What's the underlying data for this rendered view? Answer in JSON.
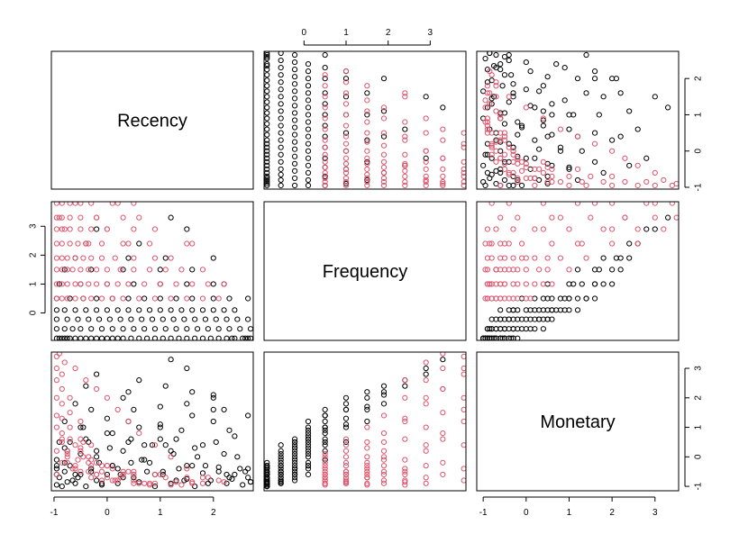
{
  "chart_data": {
    "type": "scatter-matrix",
    "variables": [
      "Recency",
      "Frequency",
      "Monetary"
    ],
    "ranges": {
      "Recency": [
        -1.05,
        2.75
      ],
      "Frequency": [
        -0.95,
        3.85
      ],
      "Monetary": [
        -1.15,
        3.55
      ]
    },
    "ticks": {
      "Recency": [
        -1,
        0,
        1,
        2
      ],
      "Frequency": [
        0,
        1,
        2,
        3
      ],
      "Monetary": [
        -1,
        0,
        1,
        2,
        3
      ]
    },
    "frequency_levels": [
      -0.88,
      -0.55,
      -0.22,
      0.1,
      0.5,
      1.0,
      1.5,
      1.9,
      2.4,
      2.9,
      3.3,
      3.8
    ],
    "groups": [
      {
        "id": 1,
        "color": "#000000"
      },
      {
        "id": 2,
        "color": "#DF536B"
      }
    ],
    "points": [
      [
        -0.95,
        -0.88,
        -0.95,
        1
      ],
      [
        -0.9,
        -0.88,
        -0.7,
        1
      ],
      [
        -0.85,
        -0.88,
        -1.0,
        1
      ],
      [
        -0.8,
        -0.88,
        -0.5,
        1
      ],
      [
        -0.75,
        -0.88,
        -0.85,
        1
      ],
      [
        -0.7,
        -0.88,
        -0.3,
        1
      ],
      [
        -0.6,
        -0.88,
        -0.9,
        1
      ],
      [
        -0.5,
        -0.88,
        -0.6,
        1
      ],
      [
        -0.4,
        -0.88,
        -1.0,
        1
      ],
      [
        -0.3,
        -0.88,
        -0.4,
        1
      ],
      [
        -0.2,
        -0.88,
        -0.8,
        1
      ],
      [
        -0.1,
        -0.88,
        -0.95,
        1
      ],
      [
        0.0,
        -0.88,
        -0.6,
        1
      ],
      [
        0.1,
        -0.88,
        -0.3,
        1
      ],
      [
        0.2,
        -0.88,
        -0.9,
        1
      ],
      [
        0.3,
        -0.88,
        -0.7,
        1
      ],
      [
        0.45,
        -0.88,
        -0.2,
        1
      ],
      [
        0.6,
        -0.88,
        -0.85,
        1
      ],
      [
        0.75,
        -0.88,
        -0.5,
        1
      ],
      [
        0.9,
        -0.88,
        -1.0,
        1
      ],
      [
        1.05,
        -0.88,
        -0.6,
        1
      ],
      [
        1.2,
        -0.88,
        -0.9,
        1
      ],
      [
        1.35,
        -0.88,
        -0.4,
        1
      ],
      [
        1.5,
        -0.88,
        -0.75,
        1
      ],
      [
        1.65,
        -0.88,
        -1.0,
        1
      ],
      [
        1.8,
        -0.88,
        -0.55,
        1
      ],
      [
        1.95,
        -0.88,
        -0.8,
        1
      ],
      [
        2.1,
        -0.88,
        -0.35,
        1
      ],
      [
        2.25,
        -0.88,
        -0.9,
        1
      ],
      [
        2.4,
        -0.88,
        -0.6,
        1
      ],
      [
        2.55,
        -0.88,
        -0.95,
        1
      ],
      [
        2.65,
        -0.88,
        -0.7,
        1
      ],
      [
        2.7,
        -0.88,
        -0.85,
        1
      ],
      [
        2.6,
        -0.88,
        -0.5,
        1
      ],
      [
        2.35,
        -0.88,
        -0.75,
        1
      ],
      [
        -0.95,
        -0.55,
        -0.6,
        1
      ],
      [
        -0.8,
        -0.55,
        -0.2,
        1
      ],
      [
        -0.65,
        -0.55,
        -0.8,
        1
      ],
      [
        -0.5,
        -0.55,
        0.1,
        1
      ],
      [
        -0.3,
        -0.55,
        -0.5,
        1
      ],
      [
        -0.1,
        -0.55,
        -0.9,
        1
      ],
      [
        0.1,
        -0.55,
        -0.3,
        1
      ],
      [
        0.3,
        -0.55,
        0.2,
        1
      ],
      [
        0.5,
        -0.55,
        -0.7,
        1
      ],
      [
        0.7,
        -0.55,
        -0.1,
        1
      ],
      [
        0.9,
        -0.55,
        -0.6,
        1
      ],
      [
        1.1,
        -0.55,
        0.4,
        1
      ],
      [
        1.3,
        -0.55,
        -0.8,
        1
      ],
      [
        1.5,
        -0.55,
        -0.3,
        1
      ],
      [
        1.7,
        -0.55,
        0.0,
        1
      ],
      [
        1.9,
        -0.55,
        -0.9,
        1
      ],
      [
        2.1,
        -0.55,
        -0.5,
        1
      ],
      [
        2.3,
        -0.55,
        -0.7,
        1
      ],
      [
        2.5,
        -0.55,
        -0.4,
        1
      ],
      [
        2.7,
        -0.55,
        -0.85,
        1
      ],
      [
        -0.95,
        -0.22,
        -0.4,
        1
      ],
      [
        -0.75,
        -0.22,
        0.2,
        1
      ],
      [
        -0.55,
        -0.22,
        -0.7,
        1
      ],
      [
        -0.35,
        -0.22,
        0.5,
        1
      ],
      [
        -0.15,
        -0.22,
        -0.2,
        1
      ],
      [
        0.05,
        -0.22,
        0.3,
        1
      ],
      [
        0.25,
        -0.22,
        -0.6,
        1
      ],
      [
        0.45,
        -0.22,
        0.6,
        1
      ],
      [
        0.65,
        -0.22,
        -0.1,
        1
      ],
      [
        0.85,
        -0.22,
        0.4,
        1
      ],
      [
        1.05,
        -0.22,
        -0.5,
        1
      ],
      [
        1.25,
        -0.22,
        0.1,
        1
      ],
      [
        1.45,
        -0.22,
        -0.8,
        1
      ],
      [
        1.65,
        -0.22,
        0.3,
        1
      ],
      [
        1.85,
        -0.22,
        -0.3,
        1
      ],
      [
        2.05,
        -0.22,
        0.5,
        1
      ],
      [
        2.25,
        -0.22,
        -0.6,
        1
      ],
      [
        2.45,
        -0.22,
        0.0,
        1
      ],
      [
        2.65,
        -0.22,
        -0.4,
        1
      ],
      [
        -0.95,
        0.1,
        -0.3,
        1
      ],
      [
        -0.8,
        0.1,
        0.3,
        1
      ],
      [
        -0.6,
        0.1,
        -0.6,
        1
      ],
      [
        -0.4,
        0.1,
        0.6,
        1
      ],
      [
        -0.2,
        0.1,
        0.0,
        1
      ],
      [
        0.0,
        0.1,
        0.8,
        1
      ],
      [
        0.2,
        0.1,
        -0.4,
        1
      ],
      [
        0.4,
        0.1,
        0.5,
        1
      ],
      [
        0.6,
        0.1,
        1.0,
        1
      ],
      [
        0.8,
        0.1,
        -0.2,
        1
      ],
      [
        1.0,
        0.1,
        0.6,
        1
      ],
      [
        1.2,
        0.1,
        0.2,
        1
      ],
      [
        1.4,
        0.1,
        0.9,
        1
      ],
      [
        1.6,
        0.1,
        -0.3,
        1
      ],
      [
        1.8,
        0.1,
        0.4,
        1
      ],
      [
        2.0,
        0.1,
        1.2,
        1
      ],
      [
        2.2,
        0.1,
        0.1,
        1
      ],
      [
        2.4,
        0.1,
        0.7,
        1
      ],
      [
        -0.95,
        0.5,
        -0.1,
        1
      ],
      [
        -0.7,
        0.5,
        0.5,
        1
      ],
      [
        -0.45,
        0.5,
        1.0,
        1
      ],
      [
        -0.2,
        0.5,
        0.2,
        1
      ],
      [
        0.1,
        0.5,
        0.8,
        1
      ],
      [
        0.4,
        0.5,
        1.2,
        1
      ],
      [
        0.7,
        0.5,
        0.4,
        1
      ],
      [
        1.0,
        0.5,
        1.0,
        1
      ],
      [
        1.3,
        0.5,
        0.6,
        1
      ],
      [
        1.6,
        0.5,
        1.4,
        1
      ],
      [
        2.0,
        0.5,
        1.6,
        1
      ],
      [
        2.3,
        0.5,
        0.9,
        1
      ],
      [
        2.65,
        0.5,
        1.4,
        1
      ],
      [
        -0.9,
        1.0,
        0.5,
        1
      ],
      [
        -0.5,
        1.0,
        1.0,
        1
      ],
      [
        0.0,
        1.0,
        1.3,
        1
      ],
      [
        0.5,
        1.0,
        1.6,
        1
      ],
      [
        1.0,
        1.0,
        1.1,
        1
      ],
      [
        1.5,
        1.0,
        1.8,
        1
      ],
      [
        2.0,
        1.0,
        2.0,
        1
      ],
      [
        2.2,
        1.0,
        1.6,
        1
      ],
      [
        -0.8,
        1.5,
        1.2,
        1
      ],
      [
        -0.3,
        1.5,
        1.6,
        1
      ],
      [
        0.3,
        1.5,
        2.0,
        1
      ],
      [
        1.0,
        1.5,
        1.7,
        1
      ],
      [
        1.6,
        1.5,
        2.2,
        1
      ],
      [
        -0.6,
        1.9,
        1.8,
        1
      ],
      [
        0.4,
        1.9,
        2.2,
        1
      ],
      [
        1.1,
        1.9,
        2.4,
        1
      ],
      [
        2.0,
        1.9,
        2.1,
        1
      ],
      [
        -0.4,
        2.4,
        2.4,
        1
      ],
      [
        0.6,
        2.4,
        2.6,
        1
      ],
      [
        1.5,
        2.9,
        3.0,
        1
      ],
      [
        1.2,
        3.3,
        3.3,
        1
      ],
      [
        -0.2,
        2.9,
        2.8,
        1
      ],
      [
        -0.95,
        0.5,
        -0.6,
        2
      ],
      [
        -0.85,
        0.5,
        -0.2,
        2
      ],
      [
        -0.75,
        0.5,
        0.1,
        2
      ],
      [
        -0.6,
        0.5,
        -0.4,
        2
      ],
      [
        -0.45,
        0.5,
        0.0,
        2
      ],
      [
        -0.3,
        0.5,
        -0.7,
        2
      ],
      [
        -0.1,
        0.5,
        -0.3,
        2
      ],
      [
        0.1,
        0.5,
        -0.8,
        2
      ],
      [
        0.3,
        0.5,
        -0.5,
        2
      ],
      [
        0.6,
        0.5,
        -0.9,
        2
      ],
      [
        0.9,
        0.5,
        -0.6,
        2
      ],
      [
        1.2,
        0.5,
        -0.95,
        2
      ],
      [
        1.5,
        0.5,
        -0.7,
        2
      ],
      [
        1.8,
        0.5,
        -0.9,
        2
      ],
      [
        2.1,
        0.5,
        -0.8,
        2
      ],
      [
        -0.95,
        1.0,
        0.2,
        2
      ],
      [
        -0.85,
        1.0,
        0.6,
        2
      ],
      [
        -0.75,
        1.0,
        -0.2,
        2
      ],
      [
        -0.6,
        1.0,
        0.4,
        2
      ],
      [
        -0.5,
        1.0,
        -0.5,
        2
      ],
      [
        -0.35,
        1.0,
        0.0,
        2
      ],
      [
        -0.2,
        1.0,
        -0.6,
        2
      ],
      [
        0.0,
        1.0,
        -0.3,
        2
      ],
      [
        0.2,
        1.0,
        -0.8,
        2
      ],
      [
        0.4,
        1.0,
        -0.5,
        2
      ],
      [
        0.7,
        1.0,
        -0.9,
        2
      ],
      [
        1.0,
        1.0,
        -0.6,
        2
      ],
      [
        1.3,
        1.0,
        -0.85,
        2
      ],
      [
        1.6,
        1.0,
        -0.9,
        2
      ],
      [
        1.9,
        1.0,
        -0.7,
        2
      ],
      [
        -0.95,
        1.5,
        1.0,
        2
      ],
      [
        -0.85,
        1.5,
        0.5,
        2
      ],
      [
        -0.75,
        1.5,
        0.0,
        2
      ],
      [
        -0.65,
        1.5,
        -0.4,
        2
      ],
      [
        -0.5,
        1.5,
        0.3,
        2
      ],
      [
        -0.35,
        1.5,
        -0.2,
        2
      ],
      [
        -0.2,
        1.5,
        -0.6,
        2
      ],
      [
        0.0,
        1.5,
        -0.3,
        2
      ],
      [
        0.25,
        1.5,
        -0.7,
        2
      ],
      [
        0.5,
        1.5,
        -0.5,
        2
      ],
      [
        0.8,
        1.5,
        -0.9,
        2
      ],
      [
        1.1,
        1.5,
        -0.7,
        2
      ],
      [
        1.4,
        1.5,
        -0.95,
        2
      ],
      [
        -0.95,
        1.9,
        1.4,
        2
      ],
      [
        -0.85,
        1.9,
        0.8,
        2
      ],
      [
        -0.75,
        1.9,
        0.2,
        2
      ],
      [
        -0.6,
        1.9,
        -0.3,
        2
      ],
      [
        -0.45,
        1.9,
        0.5,
        2
      ],
      [
        -0.3,
        1.9,
        -0.1,
        2
      ],
      [
        -0.1,
        1.9,
        -0.5,
        2
      ],
      [
        0.15,
        1.9,
        -0.8,
        2
      ],
      [
        0.5,
        1.9,
        -0.6,
        2
      ],
      [
        0.9,
        1.9,
        -0.9,
        2
      ],
      [
        -0.95,
        2.4,
        2.0,
        2
      ],
      [
        -0.85,
        2.4,
        1.3,
        2
      ],
      [
        -0.7,
        2.4,
        0.6,
        2
      ],
      [
        -0.55,
        2.4,
        -0.1,
        2
      ],
      [
        -0.35,
        2.4,
        -0.5,
        2
      ],
      [
        -0.1,
        2.4,
        -0.8,
        2
      ],
      [
        0.3,
        2.4,
        -0.6,
        2
      ],
      [
        0.8,
        2.4,
        -0.95,
        2
      ],
      [
        1.6,
        2.4,
        -0.85,
        2
      ],
      [
        -0.95,
        2.9,
        2.6,
        2
      ],
      [
        -0.85,
        2.9,
        1.8,
        2
      ],
      [
        -0.7,
        2.9,
        1.0,
        2
      ],
      [
        -0.5,
        2.9,
        0.2,
        2
      ],
      [
        -0.3,
        2.9,
        -0.3,
        2
      ],
      [
        0.0,
        2.9,
        -0.7,
        2
      ],
      [
        0.5,
        2.9,
        -0.9,
        2
      ],
      [
        -0.95,
        3.3,
        3.0,
        2
      ],
      [
        -0.85,
        3.3,
        2.3,
        2
      ],
      [
        -0.7,
        3.3,
        1.5,
        2
      ],
      [
        -0.5,
        3.3,
        0.6,
        2
      ],
      [
        -0.2,
        3.3,
        -0.2,
        2
      ],
      [
        0.3,
        3.3,
        -0.6,
        2
      ],
      [
        -0.95,
        3.8,
        3.4,
        2
      ],
      [
        -0.85,
        3.8,
        2.8,
        2
      ],
      [
        -0.7,
        3.8,
        2.0,
        2
      ],
      [
        -0.5,
        3.8,
        1.2,
        2
      ],
      [
        -0.3,
        3.8,
        0.4,
        2
      ],
      [
        0.1,
        3.8,
        -0.4,
        2
      ],
      [
        0.5,
        3.8,
        -0.8,
        2
      ],
      [
        -0.9,
        3.3,
        3.5,
        2
      ],
      [
        -0.8,
        2.9,
        3.2,
        2
      ],
      [
        -0.6,
        3.8,
        3.0,
        2
      ],
      [
        -0.4,
        2.4,
        2.6,
        2
      ],
      [
        -0.2,
        3.3,
        2.3,
        2
      ],
      [
        0.0,
        2.9,
        2.0,
        2
      ],
      [
        0.2,
        3.8,
        1.6,
        2
      ],
      [
        0.4,
        2.4,
        1.2,
        2
      ],
      [
        0.6,
        3.3,
        0.8,
        2
      ],
      [
        0.9,
        2.9,
        0.4,
        2
      ],
      [
        1.2,
        1.9,
        0.0,
        2
      ],
      [
        1.5,
        2.4,
        -0.4,
        2
      ],
      [
        1.8,
        1.5,
        -0.7,
        2
      ],
      [
        2.2,
        1.0,
        -0.85,
        2
      ]
    ]
  }
}
